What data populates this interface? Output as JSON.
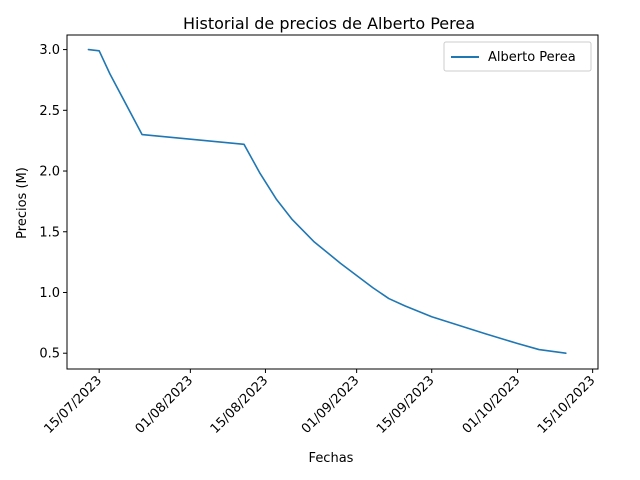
{
  "chart_data": {
    "type": "line",
    "title": "Historial de precios de Alberto Perea",
    "xlabel": "Fechas",
    "ylabel": "Precios (M)",
    "xlim": [
      "2023-07-09",
      "2023-10-16"
    ],
    "ylim": [
      0.37,
      3.12
    ],
    "x_ticks": [
      "2023-07-15",
      "2023-08-01",
      "2023-08-15",
      "2023-09-01",
      "2023-09-15",
      "2023-10-01",
      "2023-10-15"
    ],
    "x_tick_labels": [
      "15/07/2023",
      "01/08/2023",
      "15/08/2023",
      "01/09/2023",
      "15/09/2023",
      "01/10/2023",
      "15/10/2023"
    ],
    "y_ticks": [
      0.5,
      1.0,
      1.5,
      2.0,
      2.5,
      3.0
    ],
    "y_tick_labels": [
      "0.5",
      "1.0",
      "1.5",
      "2.0",
      "2.5",
      "3.0"
    ],
    "legend_position": "top-right",
    "grid": false,
    "series": [
      {
        "name": "Alberto Perea",
        "color": "#1f77b4",
        "x": [
          "2023-07-13",
          "2023-07-15",
          "2023-07-17",
          "2023-07-23",
          "2023-08-11",
          "2023-08-14",
          "2023-08-17",
          "2023-08-20",
          "2023-08-24",
          "2023-08-29",
          "2023-09-01",
          "2023-09-04",
          "2023-09-07",
          "2023-09-10",
          "2023-09-15",
          "2023-09-20",
          "2023-09-25",
          "2023-10-01",
          "2023-10-05",
          "2023-10-10"
        ],
        "values": [
          3.0,
          2.99,
          2.8,
          2.3,
          2.22,
          1.98,
          1.77,
          1.6,
          1.42,
          1.24,
          1.14,
          1.04,
          0.95,
          0.89,
          0.8,
          0.73,
          0.66,
          0.58,
          0.53,
          0.5
        ]
      }
    ]
  }
}
